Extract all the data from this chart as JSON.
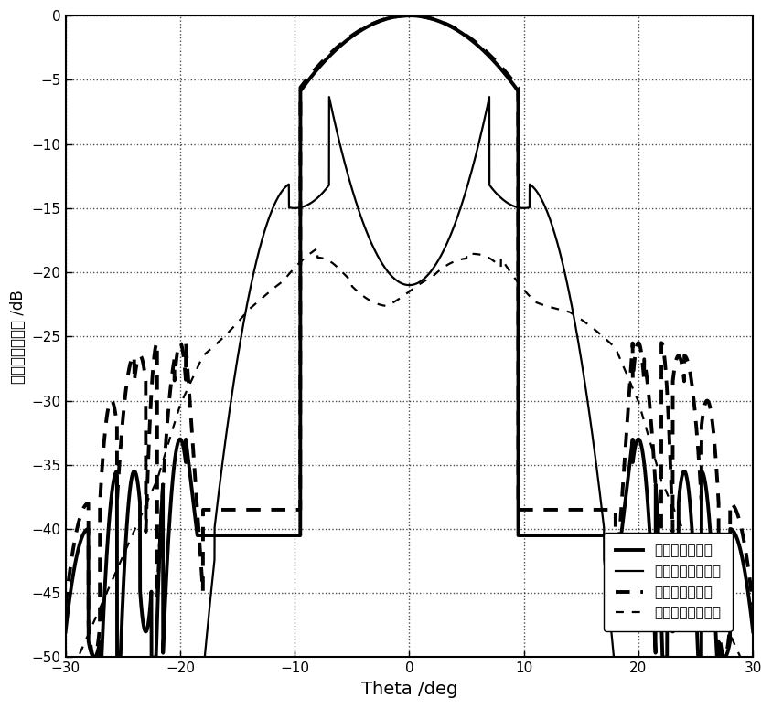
{
  "xlabel": "Theta /deg",
  "ylabel": "归一化天线增益 /dB",
  "xlim": [
    -30,
    30
  ],
  "ylim": [
    -50,
    0
  ],
  "xticks": [
    -30,
    -20,
    -10,
    0,
    10,
    20,
    30
  ],
  "yticks": [
    0,
    -5,
    -10,
    -15,
    -20,
    -25,
    -30,
    -35,
    -40,
    -45,
    -50
  ],
  "background_color": "#ffffff"
}
